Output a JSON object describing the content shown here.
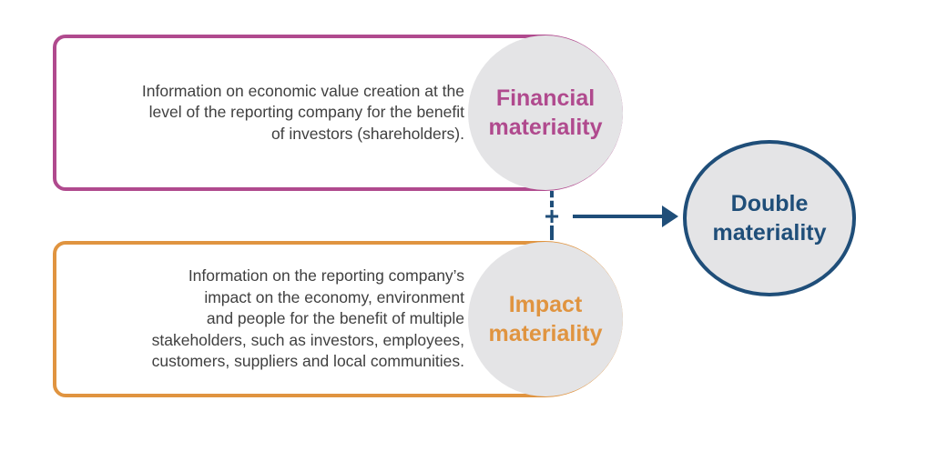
{
  "financial": {
    "title_lines": [
      "Financial",
      "materiality"
    ],
    "description_lines": [
      "Information on economic value creation at the",
      "level of the reporting company for the benefit",
      "of investors (shareholders)."
    ],
    "color": "#b04a8e"
  },
  "impact": {
    "title_lines": [
      "Impact",
      "materiality"
    ],
    "description_lines": [
      "Information on the reporting company’s",
      "impact on the economy, environment",
      "and people for the benefit of multiple",
      "stakeholders, such as investors, employees,",
      "customers, suppliers and local communities."
    ],
    "color": "#e09440"
  },
  "connector": {
    "symbol": "+",
    "arrow_icon": "arrow-right-icon",
    "color": "#1f4e79"
  },
  "result": {
    "title_lines": [
      "Double",
      "materiality"
    ],
    "color": "#1f4e79",
    "fill": "#e4e4e6"
  }
}
